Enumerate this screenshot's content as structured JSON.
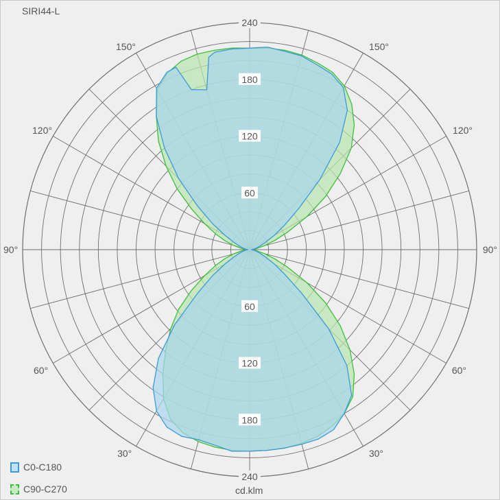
{
  "chart_data": {
    "type": "polar",
    "title": "SIRI44-L",
    "unit": "cd.klm",
    "radial_max": 240,
    "radial_ticks": [
      60,
      120,
      180,
      240
    ],
    "angle_labels": {
      "left": [
        "90°",
        "120°",
        "150°",
        "60°",
        "30°"
      ],
      "right": [
        "90°",
        "120°",
        "150°",
        "60°",
        "30°"
      ]
    },
    "series": [
      {
        "name": "C0-C180",
        "stroke": "#3b9ad6",
        "fill": "#a9d6ef",
        "points": [
          [
            0,
            213
          ],
          [
            5,
            214
          ],
          [
            10,
            210
          ],
          [
            15,
            208
          ],
          [
            20,
            210
          ],
          [
            25,
            207
          ],
          [
            30,
            197
          ],
          [
            35,
            178
          ],
          [
            40,
            150
          ],
          [
            45,
            112
          ],
          [
            50,
            72
          ],
          [
            55,
            48
          ],
          [
            60,
            30
          ],
          [
            65,
            19
          ],
          [
            70,
            12
          ],
          [
            75,
            8
          ],
          [
            80,
            5
          ],
          [
            85,
            3
          ],
          [
            90,
            2
          ],
          [
            95,
            3
          ],
          [
            100,
            5
          ],
          [
            105,
            8
          ],
          [
            110,
            12
          ],
          [
            115,
            19
          ],
          [
            120,
            30
          ],
          [
            125,
            48
          ],
          [
            130,
            72
          ],
          [
            135,
            106
          ],
          [
            140,
            140
          ],
          [
            145,
            172
          ],
          [
            150,
            197
          ],
          [
            155,
            207
          ],
          [
            158,
            208
          ],
          [
            160,
            180
          ],
          [
            165,
            175
          ],
          [
            168,
            208
          ],
          [
            170,
            212
          ],
          [
            175,
            213
          ],
          [
            180,
            213
          ],
          [
            185,
            215
          ],
          [
            190,
            213
          ],
          [
            195,
            212
          ],
          [
            200,
            208
          ],
          [
            205,
            205
          ],
          [
            210,
            198
          ],
          [
            215,
            180
          ],
          [
            220,
            148
          ],
          [
            225,
            105
          ],
          [
            230,
            68
          ],
          [
            235,
            45
          ],
          [
            240,
            30
          ],
          [
            245,
            19
          ],
          [
            250,
            12
          ],
          [
            255,
            8
          ],
          [
            260,
            5
          ],
          [
            265,
            3
          ],
          [
            270,
            2
          ],
          [
            275,
            3
          ],
          [
            280,
            5
          ],
          [
            285,
            8
          ],
          [
            290,
            12
          ],
          [
            295,
            19
          ],
          [
            300,
            30
          ],
          [
            305,
            45
          ],
          [
            310,
            72
          ],
          [
            315,
            118
          ],
          [
            320,
            160
          ],
          [
            325,
            188
          ],
          [
            330,
            200
          ],
          [
            335,
            210
          ],
          [
            340,
            213
          ],
          [
            345,
            213
          ],
          [
            350,
            213
          ],
          [
            355,
            213
          ]
        ]
      },
      {
        "name": "C90-C270",
        "stroke": "#3dbe3d",
        "fill": "#b6e6ad",
        "points": [
          [
            0,
            213
          ],
          [
            5,
            213
          ],
          [
            10,
            212
          ],
          [
            15,
            210
          ],
          [
            20,
            206
          ],
          [
            25,
            198
          ],
          [
            30,
            182
          ],
          [
            35,
            160
          ],
          [
            40,
            138
          ],
          [
            45,
            118
          ],
          [
            50,
            98
          ],
          [
            55,
            75
          ],
          [
            60,
            55
          ],
          [
            65,
            40
          ],
          [
            70,
            28
          ],
          [
            75,
            18
          ],
          [
            80,
            10
          ],
          [
            85,
            5
          ],
          [
            90,
            2
          ],
          [
            95,
            5
          ],
          [
            100,
            10
          ],
          [
            105,
            18
          ],
          [
            110,
            28
          ],
          [
            115,
            40
          ],
          [
            120,
            55
          ],
          [
            125,
            75
          ],
          [
            130,
            100
          ],
          [
            135,
            125
          ],
          [
            140,
            150
          ],
          [
            145,
            172
          ],
          [
            150,
            195
          ],
          [
            155,
            206
          ],
          [
            160,
            212
          ],
          [
            165,
            214
          ],
          [
            170,
            214
          ],
          [
            175,
            214
          ],
          [
            180,
            213
          ],
          [
            185,
            214
          ],
          [
            190,
            214
          ],
          [
            195,
            213
          ],
          [
            200,
            210
          ],
          [
            205,
            207
          ],
          [
            210,
            200
          ],
          [
            215,
            188
          ],
          [
            220,
            172
          ],
          [
            225,
            152
          ],
          [
            230,
            125
          ],
          [
            235,
            98
          ],
          [
            240,
            70
          ],
          [
            245,
            45
          ],
          [
            250,
            28
          ],
          [
            255,
            16
          ],
          [
            260,
            8
          ],
          [
            265,
            4
          ],
          [
            270,
            2
          ],
          [
            275,
            4
          ],
          [
            280,
            8
          ],
          [
            285,
            16
          ],
          [
            290,
            28
          ],
          [
            295,
            45
          ],
          [
            300,
            70
          ],
          [
            305,
            98
          ],
          [
            310,
            125
          ],
          [
            315,
            150
          ],
          [
            320,
            172
          ],
          [
            325,
            190
          ],
          [
            330,
            200
          ],
          [
            335,
            206
          ],
          [
            340,
            210
          ],
          [
            345,
            212
          ],
          [
            350,
            213
          ],
          [
            355,
            213
          ]
        ]
      }
    ],
    "legend": {
      "placement": "bottom-left",
      "items": [
        "C0-C180",
        "C90-C270"
      ]
    },
    "grid": true
  }
}
